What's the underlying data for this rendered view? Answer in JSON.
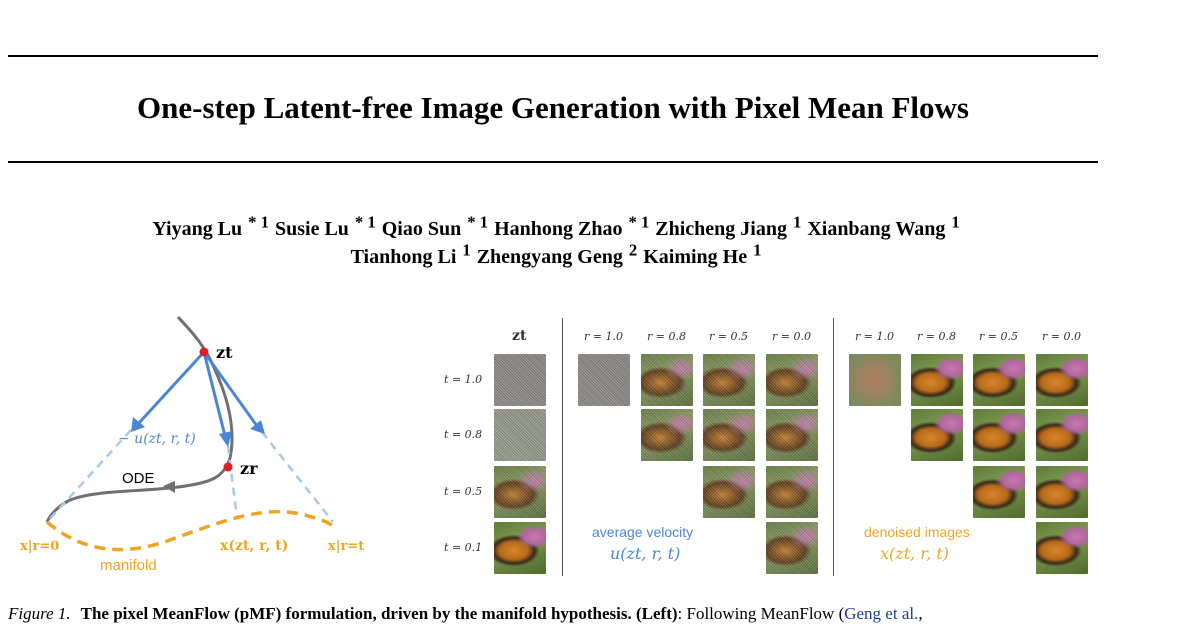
{
  "title": "One-step Latent-free Image Generation with Pixel Mean Flows",
  "authors_line1": [
    {
      "name": "Yiyang Lu",
      "aff": "* 1"
    },
    {
      "name": "Susie Lu",
      "aff": "* 1"
    },
    {
      "name": "Qiao Sun",
      "aff": "* 1"
    },
    {
      "name": "Hanhong Zhao",
      "aff": "* 1"
    },
    {
      "name": "Zhicheng Jiang",
      "aff": "1"
    },
    {
      "name": "Xianbang Wang",
      "aff": "1"
    }
  ],
  "authors_line2": [
    {
      "name": "Tianhong Li",
      "aff": "1"
    },
    {
      "name": "Zhengyang Geng",
      "aff": "2"
    },
    {
      "name": "Kaiming He",
      "aff": "1"
    }
  ],
  "figure_left": {
    "zt_label": "zt",
    "zr_label": "zr",
    "velocity_label": "− u(zt, r, t)",
    "ode_label": "ODE",
    "x_r0_label": "x|r=0",
    "x_zt_label": "x(zt, r, t)",
    "x_rt_label": "x|r=t",
    "manifold_label": "manifold",
    "colors": {
      "blue": "#4a86d8",
      "light_blue": "#a8c8ee",
      "orange": "#f0a424",
      "curve": "#707070",
      "point": "#e02020"
    }
  },
  "figure_right": {
    "zt_header": "zt",
    "col_labels": [
      "r = 1.0",
      "r = 0.8",
      "r = 0.5",
      "r = 0.0"
    ],
    "row_labels": [
      "t = 1.0",
      "t = 0.8",
      "t = 0.5",
      "t = 0.1"
    ],
    "avg_velocity_label": "average velocity",
    "avg_velocity_formula": "u(zt, r, t)",
    "denoised_label": "denoised images",
    "denoised_formula": "x(zt, r, t)"
  },
  "caption": {
    "figure_number": "Figure 1.",
    "bold_text": "The pixel MeanFlow (pMF) formulation, driven by the manifold hypothesis. (Left)",
    "text": ": Following MeanFlow (",
    "link": "Geng et al.",
    "tail": ","
  }
}
